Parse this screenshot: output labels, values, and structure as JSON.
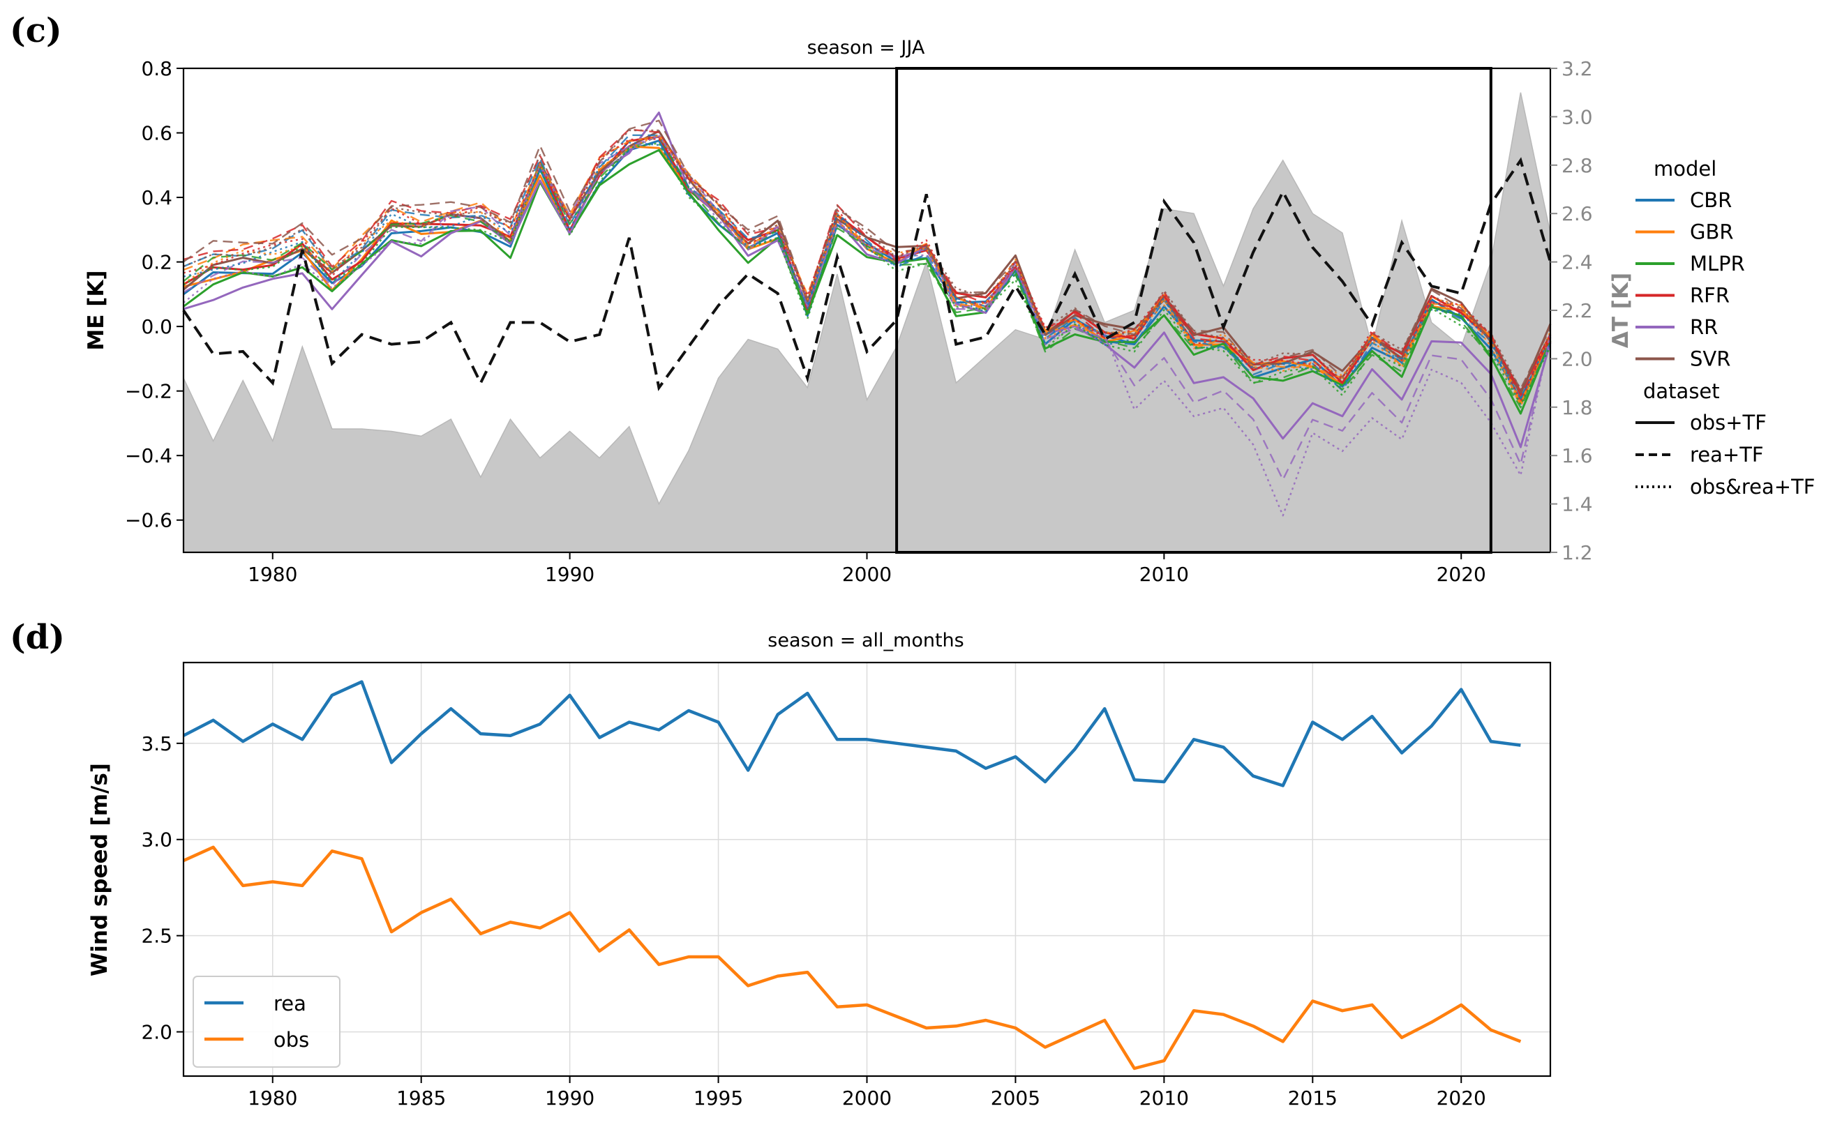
{
  "panels": {
    "c": "(c)",
    "d": "(d)"
  },
  "chart_data": [
    {
      "id": "c",
      "type": "line",
      "title": "season = JJA",
      "xlabel": "",
      "ylabel": "ME [K]",
      "ylabel_right": "ΔT [K]",
      "xlim": [
        1977,
        2023
      ],
      "ylim": [
        -0.7,
        0.8
      ],
      "ylim_right": [
        1.2,
        3.2
      ],
      "x_ticks": [
        1980,
        1990,
        2000,
        2010,
        2020
      ],
      "y_ticks": [
        "0.8",
        "0.6",
        "0.4",
        "0.2",
        "0.0",
        "−0.2",
        "−0.4",
        "−0.6"
      ],
      "y_tick_values": [
        0.8,
        0.6,
        0.4,
        0.2,
        0.0,
        -0.2,
        -0.4,
        -0.6
      ],
      "y_ticks_right": [
        "3.2",
        "3.0",
        "2.8",
        "2.6",
        "2.4",
        "2.2",
        "2.0",
        "1.8",
        "1.6",
        "1.4",
        "1.2"
      ],
      "y_tick_values_right": [
        3.2,
        3.0,
        2.8,
        2.6,
        2.4,
        2.2,
        2.0,
        1.8,
        1.6,
        1.4,
        1.2
      ],
      "highlight_box_x": [
        2001,
        2021
      ],
      "x": [
        1977,
        1978,
        1979,
        1980,
        1981,
        1982,
        1983,
        1984,
        1985,
        1986,
        1987,
        1988,
        1989,
        1990,
        1991,
        1992,
        1993,
        1994,
        1995,
        1996,
        1997,
        1998,
        1999,
        2000,
        2001,
        2002,
        2003,
        2004,
        2005,
        2006,
        2007,
        2008,
        2009,
        2010,
        2011,
        2012,
        2013,
        2014,
        2015,
        2016,
        2017,
        2018,
        2019,
        2020,
        2021,
        2022,
        2023
      ],
      "delta_T_area": [
        1.92,
        1.66,
        1.91,
        1.66,
        2.05,
        1.71,
        1.71,
        1.7,
        1.68,
        1.75,
        1.51,
        1.75,
        1.59,
        1.7,
        1.59,
        1.72,
        1.4,
        1.62,
        1.92,
        2.08,
        2.04,
        1.88,
        2.35,
        1.83,
        2.05,
        2.4,
        1.9,
        2.01,
        2.12,
        2.08,
        2.45,
        2.15,
        2.2,
        2.62,
        2.6,
        2.3,
        2.62,
        2.82,
        2.6,
        2.52,
        2.05,
        2.57,
        2.15,
        2.05,
        2.4,
        3.1,
        2.52
      ],
      "delta_T_dashed": [
        2.2,
        2.02,
        2.03,
        1.9,
        2.45,
        1.98,
        2.1,
        2.06,
        2.07,
        2.15,
        1.9,
        2.15,
        2.15,
        2.07,
        2.1,
        2.5,
        1.88,
        2.05,
        2.22,
        2.35,
        2.27,
        1.92,
        2.42,
        2.03,
        2.16,
        2.68,
        2.06,
        2.09,
        2.3,
        2.1,
        2.35,
        2.08,
        2.15,
        2.65,
        2.48,
        2.13,
        2.44,
        2.69,
        2.46,
        2.32,
        2.14,
        2.48,
        2.3,
        2.27,
        2.64,
        2.82,
        2.4
      ],
      "me_obs_tf": [
        0.1,
        0.15,
        0.17,
        0.18,
        0.22,
        0.12,
        0.2,
        0.3,
        0.28,
        0.3,
        0.31,
        0.25,
        0.47,
        0.29,
        0.46,
        0.54,
        0.56,
        0.42,
        0.33,
        0.23,
        0.28,
        0.05,
        0.32,
        0.24,
        0.2,
        0.23,
        0.07,
        0.06,
        0.18,
        -0.04,
        0.01,
        -0.04,
        -0.04,
        0.07,
        -0.06,
        -0.05,
        -0.14,
        -0.13,
        -0.12,
        -0.18,
        -0.05,
        -0.12,
        0.07,
        0.04,
        -0.06,
        -0.24,
        -0.04
      ],
      "legend_model_title": "model",
      "legend_dataset_title": "dataset",
      "series": [
        {
          "name": "CBR",
          "color": "#1f77b4",
          "offset": 0.0,
          "rr_like": false
        },
        {
          "name": "GBR",
          "color": "#ff7f0e",
          "offset": 0.01,
          "rr_like": false
        },
        {
          "name": "MLPR",
          "color": "#2ca02c",
          "offset": -0.02,
          "rr_like": false
        },
        {
          "name": "RFR",
          "color": "#d62728",
          "offset": 0.02,
          "rr_like": false
        },
        {
          "name": "RR",
          "color": "#9467bd",
          "offset": 0.0,
          "rr_like": true
        },
        {
          "name": "SVR",
          "color": "#8c564b",
          "offset": 0.03,
          "rr_like": false
        }
      ],
      "datasets": [
        {
          "name": "obs+TF",
          "style": "solid",
          "shift": 0.0
        },
        {
          "name": "rea+TF",
          "style": "dashed",
          "shift": 0.07
        },
        {
          "name": "obs&rea+TF",
          "style": "dotted",
          "shift": 0.04
        }
      ]
    },
    {
      "id": "d",
      "type": "line",
      "title": "season = all_months",
      "xlabel": "",
      "ylabel": "Wind speed [m/s]",
      "xlim": [
        1977,
        2023
      ],
      "ylim": [
        1.77,
        3.92
      ],
      "x_ticks": [
        1980,
        1985,
        1990,
        1995,
        2000,
        2005,
        2010,
        2015,
        2020
      ],
      "y_ticks": [
        "3.5",
        "3.0",
        "2.5",
        "2.0"
      ],
      "y_tick_values": [
        3.5,
        3.0,
        2.5,
        2.0
      ],
      "grid": true,
      "legend_position": "lower-left",
      "x": [
        1977,
        1978,
        1979,
        1980,
        1981,
        1982,
        1983,
        1984,
        1985,
        1986,
        1987,
        1988,
        1989,
        1990,
        1991,
        1992,
        1993,
        1994,
        1995,
        1996,
        1997,
        1998,
        1999,
        2000,
        2001,
        2002,
        2003,
        2004,
        2005,
        2006,
        2007,
        2008,
        2009,
        2010,
        2011,
        2012,
        2013,
        2014,
        2015,
        2016,
        2017,
        2018,
        2019,
        2020,
        2021,
        2022
      ],
      "series": [
        {
          "name": "rea",
          "color": "#1f77b4",
          "values": [
            3.54,
            3.62,
            3.51,
            3.6,
            3.52,
            3.75,
            3.82,
            3.4,
            3.55,
            3.68,
            3.55,
            3.54,
            3.6,
            3.75,
            3.53,
            3.61,
            3.57,
            3.67,
            3.61,
            3.36,
            3.65,
            3.76,
            3.52,
            3.52,
            3.5,
            3.48,
            3.46,
            3.37,
            3.43,
            3.3,
            3.47,
            3.68,
            3.31,
            3.3,
            3.52,
            3.48,
            3.33,
            3.28,
            3.61,
            3.52,
            3.64,
            3.45,
            3.59,
            3.78,
            3.51,
            3.49
          ]
        },
        {
          "name": "obs",
          "color": "#ff7f0e",
          "values": [
            2.89,
            2.96,
            2.76,
            2.78,
            2.76,
            2.94,
            2.9,
            2.52,
            2.62,
            2.69,
            2.51,
            2.57,
            2.54,
            2.62,
            2.42,
            2.53,
            2.35,
            2.39,
            2.39,
            2.24,
            2.29,
            2.31,
            2.13,
            2.14,
            2.08,
            2.02,
            2.03,
            2.06,
            2.02,
            1.92,
            1.99,
            2.06,
            1.81,
            1.85,
            2.11,
            2.09,
            2.03,
            1.95,
            2.16,
            2.11,
            2.14,
            1.97,
            2.05,
            2.14,
            2.01,
            1.95
          ]
        }
      ]
    }
  ]
}
